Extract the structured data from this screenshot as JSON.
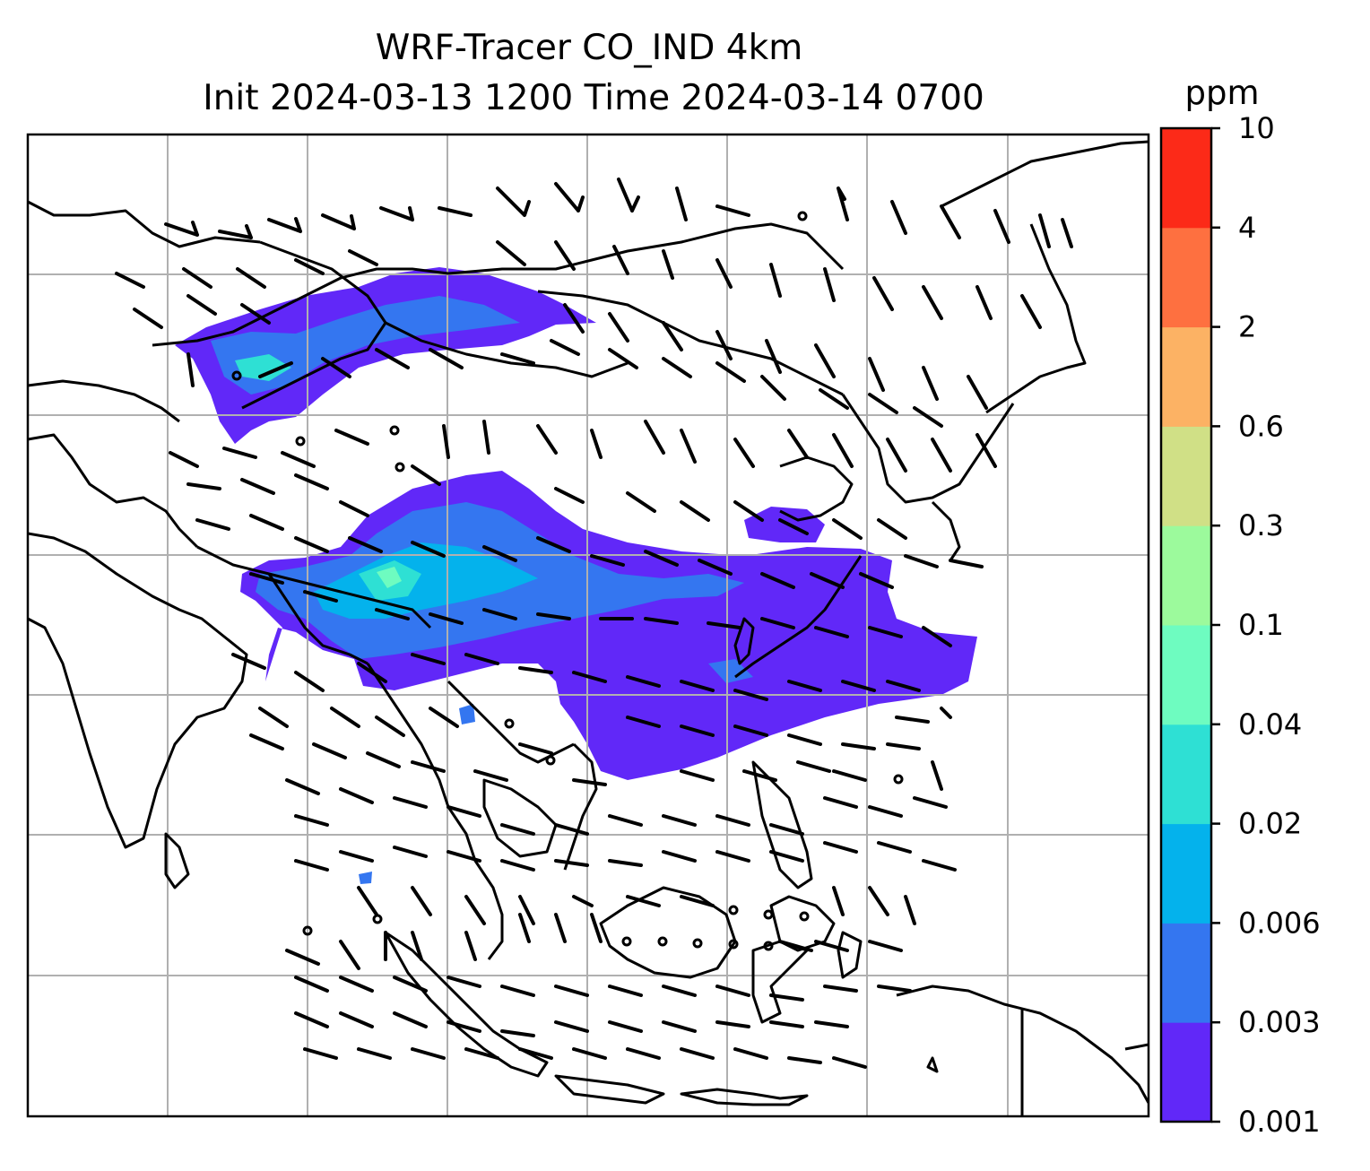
{
  "title": {
    "line1": "WRF-Tracer CO_IND 4km",
    "line2": "Init 2024-03-13 1200 Time 2024-03-14 0700"
  },
  "colorbar": {
    "unit": "ppm",
    "levels": [
      "0.001",
      "0.003",
      "0.006",
      "0.02",
      "0.04",
      "0.1",
      "0.3",
      "0.6",
      "2",
      "4",
      "10"
    ],
    "colors": [
      "#6128f8",
      "#3476f0",
      "#04b2ec",
      "#2ee0d4",
      "#6efcc0",
      "#9cfa9c",
      "#d0e086",
      "#fcb264",
      "#fe7040",
      "#fc2a18"
    ]
  },
  "map": {
    "gridlines": true,
    "land_outline_color": "#000000",
    "grid_color": "#b0b0b0",
    "calm_marker": "circle",
    "barb_color": "#000000"
  }
}
